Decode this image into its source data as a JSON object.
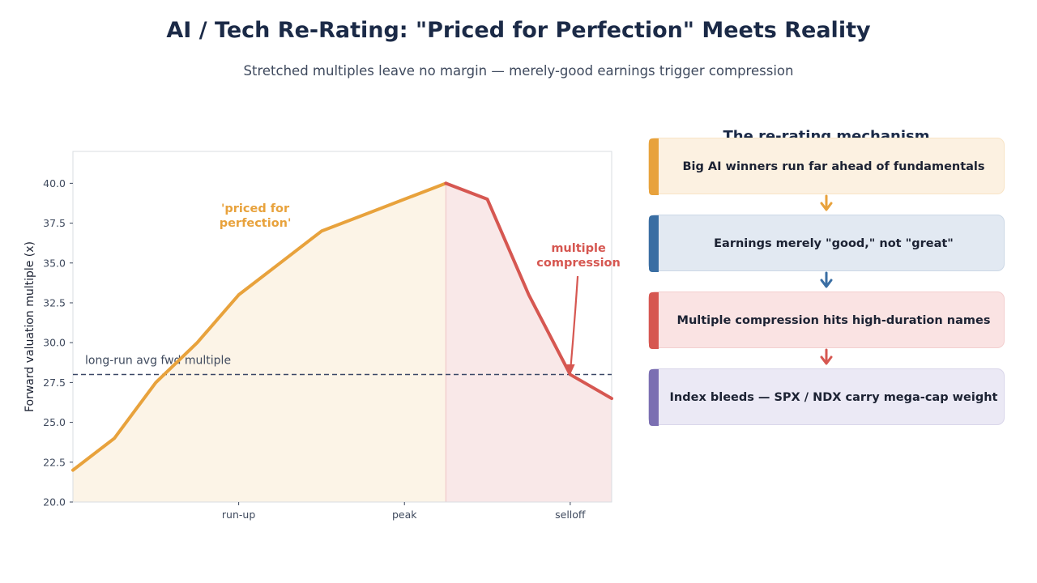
{
  "header": {
    "title": "AI / Tech Re-Rating: \"Priced for Perfection\" Meets Reality",
    "subtitle": "Stretched multiples leave no margin — merely-good earnings trigger compression"
  },
  "chart_data": {
    "type": "line",
    "title": "",
    "xlabel": "",
    "ylabel": "Forward valuation multiple (x)",
    "xlim": [
      0,
      13
    ],
    "ylim": [
      20,
      42
    ],
    "x_ticks": [
      {
        "x": 4,
        "label": "run-up"
      },
      {
        "x": 8,
        "label": "peak"
      },
      {
        "x": 12,
        "label": "selloff"
      }
    ],
    "y_ticks": [
      20.0,
      22.5,
      25.0,
      27.5,
      30.0,
      32.5,
      35.0,
      37.5,
      40.0
    ],
    "y_tick_labels": [
      "20.0",
      "22.5",
      "25.0",
      "27.5",
      "30.0",
      "32.5",
      "35.0",
      "37.5",
      "40.0"
    ],
    "grid": false,
    "series": [
      {
        "color": "#e8a23c",
        "x": [
          0,
          1,
          2,
          3,
          4,
          5,
          6,
          7,
          8,
          9
        ],
        "y": [
          22,
          24,
          27.5,
          30,
          33,
          35,
          37,
          38,
          39,
          40
        ]
      },
      {
        "color": "#d65751",
        "x": [
          9,
          10,
          11,
          12,
          13
        ],
        "y": [
          40,
          39,
          33,
          28,
          26.5
        ]
      }
    ],
    "reference_line": {
      "y": 28,
      "label": "long-run avg fwd multiple",
      "color": "#3a4766"
    },
    "shaded_regions": [
      {
        "x0": 0,
        "x1": 9,
        "color": "#fcf4e7"
      },
      {
        "x0": 9,
        "x1": 13,
        "color": "#f9e8e8"
      }
    ],
    "annotations": [
      {
        "lines": [
          "'priced for",
          "perfection'"
        ],
        "x": 4.4,
        "y": 38.2,
        "color": "#e8a23c"
      },
      {
        "lines": [
          "multiple",
          "compression"
        ],
        "x": 12.2,
        "y": 35.7,
        "color": "#d65751",
        "arrow_to": [
          12,
          28
        ]
      }
    ]
  },
  "panel": {
    "title": "The re-rating mechanism",
    "steps": [
      {
        "label": "Big AI winners run far ahead of fundamentals",
        "accent": "#e8a23c",
        "fill": "#fcf1e1",
        "border": "#f8e4c6"
      },
      {
        "label": "Earnings merely \"good,\" not \"great\"",
        "accent": "#3a6ea3",
        "fill": "#e2e9f2",
        "border": "#ccd8e6"
      },
      {
        "label": "Multiple compression hits high-duration names",
        "accent": "#d65751",
        "fill": "#fae3e3",
        "border": "#f3cfcf"
      },
      {
        "label": "Index bleeds — SPX / NDX carry mega-cap weight",
        "accent": "#7b6fb2",
        "fill": "#ebe9f5",
        "border": "#d9d6ea"
      }
    ]
  }
}
